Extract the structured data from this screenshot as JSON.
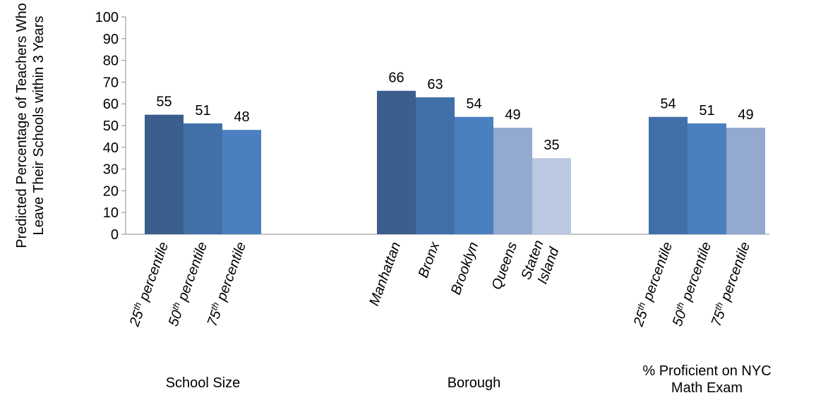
{
  "chart_data": {
    "type": "bar",
    "ylabel": [
      "Predicted Percentage of Teachers Who",
      "Leave Their Schools within 3 Years"
    ],
    "ylim": [
      0,
      100
    ],
    "yticks": [
      0,
      10,
      20,
      30,
      40,
      50,
      60,
      70,
      80,
      90,
      100
    ],
    "grid": false,
    "groups": [
      {
        "name": [
          "School Size"
        ],
        "bars": [
          {
            "label": [
              "25",
              "th",
              " percentile"
            ],
            "value": 55,
            "color": "#3b5e8c"
          },
          {
            "label": [
              "50",
              "th",
              " percentile"
            ],
            "value": 51,
            "color": "#4170a8"
          },
          {
            "label": [
              "75",
              "th",
              " percentile"
            ],
            "value": 48,
            "color": "#4a7fc0"
          }
        ]
      },
      {
        "name": [
          "Borough"
        ],
        "bars": [
          {
            "label": [
              "Manhattan"
            ],
            "value": 66,
            "color": "#3b5e8c"
          },
          {
            "label": [
              "Bronx"
            ],
            "value": 63,
            "color": "#4170a8"
          },
          {
            "label": [
              "Brooklyn"
            ],
            "value": 54,
            "color": "#4a7fc0"
          },
          {
            "label": [
              "Queens"
            ],
            "value": 49,
            "color": "#93a9d0"
          },
          {
            "label": [
              "Staten",
              "Island"
            ],
            "value": 35,
            "color": "#bac8e0"
          }
        ]
      },
      {
        "name": [
          "% Proficient on NYC",
          "Math Exam"
        ],
        "bars": [
          {
            "label": [
              "25",
              "th",
              " percentile"
            ],
            "value": 54,
            "color": "#4170a8"
          },
          {
            "label": [
              "50",
              "th",
              " percentile"
            ],
            "value": 51,
            "color": "#4a7fc0"
          },
          {
            "label": [
              "75",
              "th",
              " percentile"
            ],
            "value": 49,
            "color": "#93a9d0"
          }
        ]
      }
    ]
  }
}
